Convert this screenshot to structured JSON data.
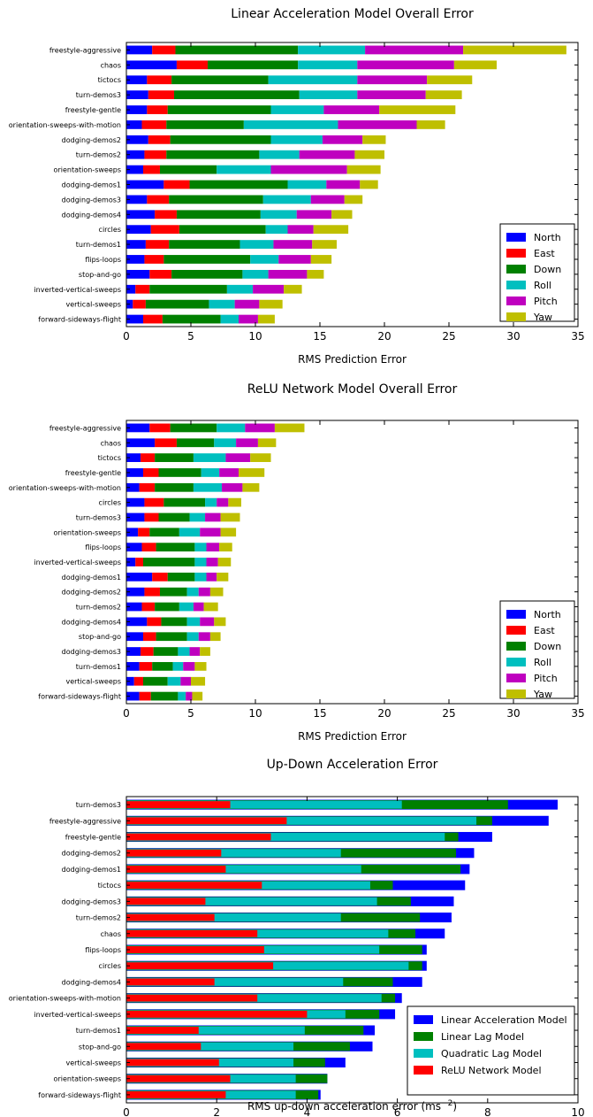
{
  "chart_data": [
    {
      "type": "bar",
      "orientation": "horizontal",
      "stacked": true,
      "title": "Linear Acceleration Model Overall Error",
      "xlabel": "RMS Prediction Error",
      "ylabel": "",
      "xlim": [
        0,
        35
      ],
      "xticks": [
        "0",
        "5",
        "10",
        "15",
        "20",
        "25",
        "30",
        "35"
      ],
      "legend_position": "lower-right",
      "categories": [
        "freestyle-aggressive",
        "chaos",
        "tictocs",
        "turn-demos3",
        "freestyle-gentle",
        "orientation-sweeps-with-motion",
        "dodging-demos2",
        "turn-demos2",
        "orientation-sweeps",
        "dodging-demos1",
        "dodging-demos3",
        "dodging-demos4",
        "circles",
        "turn-demos1",
        "flips-loops",
        "stop-and-go",
        "inverted-vertical-sweeps",
        "vertical-sweeps",
        "forward-sideways-flight"
      ],
      "series": [
        {
          "name": "North",
          "color": "#0000ff",
          "values": [
            2.0,
            3.9,
            1.6,
            1.7,
            1.6,
            1.2,
            1.7,
            1.4,
            1.3,
            2.9,
            1.6,
            2.2,
            1.9,
            1.5,
            1.4,
            1.8,
            0.7,
            0.5,
            1.3
          ]
        },
        {
          "name": "East",
          "color": "#ff0000",
          "values": [
            1.8,
            2.4,
            1.9,
            2.0,
            1.6,
            1.9,
            1.7,
            1.7,
            1.3,
            2.0,
            1.7,
            1.7,
            2.2,
            1.8,
            1.5,
            1.7,
            1.1,
            1.0,
            1.5
          ]
        },
        {
          "name": "Down",
          "color": "#008000",
          "values": [
            9.5,
            7.0,
            7.5,
            9.7,
            8.0,
            6.0,
            7.8,
            7.2,
            4.4,
            7.6,
            7.3,
            6.5,
            6.7,
            5.5,
            6.7,
            5.5,
            6.0,
            4.9,
            4.5
          ]
        },
        {
          "name": "Roll",
          "color": "#00bfbf",
          "values": [
            5.2,
            4.6,
            6.9,
            4.5,
            4.1,
            7.3,
            4.0,
            3.1,
            4.2,
            3.0,
            3.7,
            2.8,
            1.7,
            2.6,
            2.2,
            2.0,
            2.0,
            2.0,
            1.4
          ]
        },
        {
          "name": "Pitch",
          "color": "#bf00bf",
          "values": [
            7.6,
            7.5,
            5.4,
            5.3,
            4.3,
            6.1,
            3.1,
            4.3,
            5.9,
            2.6,
            2.6,
            2.7,
            2.0,
            3.0,
            2.5,
            3.0,
            2.4,
            1.9,
            1.5
          ]
        },
        {
          "name": "Yaw",
          "color": "#bfbf00",
          "values": [
            8.0,
            3.3,
            3.5,
            2.8,
            5.9,
            2.2,
            1.8,
            2.3,
            2.6,
            1.4,
            1.4,
            1.6,
            2.7,
            1.9,
            1.6,
            1.3,
            1.4,
            1.8,
            1.3
          ]
        }
      ]
    },
    {
      "type": "bar",
      "orientation": "horizontal",
      "stacked": true,
      "title": "ReLU Network Model Overall Error",
      "xlabel": "RMS Prediction Error",
      "ylabel": "",
      "xlim": [
        0,
        35
      ],
      "xticks": [
        "0",
        "5",
        "10",
        "15",
        "20",
        "25",
        "30",
        "35"
      ],
      "legend_position": "lower-right",
      "categories": [
        "freestyle-aggressive",
        "chaos",
        "tictocs",
        "freestyle-gentle",
        "orientation-sweeps-with-motion",
        "circles",
        "turn-demos3",
        "orientation-sweeps",
        "flips-loops",
        "inverted-vertical-sweeps",
        "dodging-demos1",
        "dodging-demos2",
        "turn-demos2",
        "dodging-demos4",
        "stop-and-go",
        "dodging-demos3",
        "turn-demos1",
        "vertical-sweeps",
        "forward-sideways-flight"
      ],
      "series": [
        {
          "name": "North",
          "color": "#0000ff",
          "values": [
            1.8,
            2.2,
            1.1,
            1.3,
            1.0,
            1.4,
            1.4,
            0.9,
            1.2,
            0.7,
            2.0,
            1.4,
            1.2,
            1.6,
            1.3,
            1.1,
            1.0,
            0.6,
            1.0
          ]
        },
        {
          "name": "East",
          "color": "#ff0000",
          "values": [
            1.6,
            1.7,
            1.1,
            1.2,
            1.2,
            1.5,
            1.1,
            0.9,
            1.1,
            0.6,
            1.2,
            1.2,
            1.0,
            1.1,
            1.0,
            1.0,
            1.0,
            0.7,
            0.9
          ]
        },
        {
          "name": "Down",
          "color": "#008000",
          "values": [
            3.6,
            2.9,
            3.0,
            3.3,
            3.0,
            3.2,
            2.4,
            2.3,
            3.0,
            4.0,
            2.1,
            2.1,
            1.9,
            2.0,
            2.4,
            1.9,
            1.6,
            1.9,
            2.1
          ]
        },
        {
          "name": "Roll",
          "color": "#00bfbf",
          "values": [
            2.2,
            1.7,
            2.5,
            1.4,
            2.2,
            0.9,
            1.2,
            1.6,
            0.9,
            0.9,
            0.9,
            0.9,
            1.1,
            1.0,
            0.9,
            0.9,
            0.8,
            1.0,
            0.6
          ]
        },
        {
          "name": "Pitch",
          "color": "#bf00bf",
          "values": [
            2.3,
            1.7,
            1.9,
            1.5,
            1.6,
            0.9,
            1.2,
            1.6,
            1.0,
            0.9,
            0.8,
            0.9,
            0.8,
            1.1,
            0.9,
            0.8,
            0.9,
            0.8,
            0.5
          ]
        },
        {
          "name": "Yaw",
          "color": "#bfbf00",
          "values": [
            2.3,
            1.4,
            1.6,
            2.0,
            1.3,
            1.0,
            1.5,
            1.2,
            1.0,
            1.0,
            0.9,
            1.0,
            1.1,
            0.9,
            0.8,
            0.8,
            0.9,
            1.1,
            0.8
          ]
        }
      ]
    },
    {
      "type": "bar",
      "orientation": "horizontal",
      "stacked": false,
      "overlaid": true,
      "title": "Up-Down Acceleration Error",
      "xlabel": "RMS up-down acceleration error (ms",
      "xlabel_sup": "−2",
      "xlabel_end": ")",
      "ylabel": "",
      "xlim": [
        0,
        10
      ],
      "xticks": [
        "0",
        "2",
        "4",
        "6",
        "8",
        "10"
      ],
      "legend_position": "lower-right",
      "categories": [
        "turn-demos3",
        "freestyle-aggressive",
        "freestyle-gentle",
        "dodging-demos2",
        "dodging-demos1",
        "tictocs",
        "dodging-demos3",
        "turn-demos2",
        "chaos",
        "flips-loops",
        "circles",
        "dodging-demos4",
        "orientation-sweeps-with-motion",
        "inverted-vertical-sweeps",
        "turn-demos1",
        "stop-and-go",
        "vertical-sweeps",
        "orientation-sweeps",
        "forward-sideways-flight"
      ],
      "series": [
        {
          "name": "Linear Acceleration Model",
          "color": "#0000ff",
          "values": [
            9.55,
            9.35,
            8.1,
            7.7,
            7.6,
            7.5,
            7.25,
            7.2,
            7.05,
            6.65,
            6.65,
            6.55,
            6.1,
            5.95,
            5.5,
            5.45,
            4.85,
            4.45,
            4.3
          ]
        },
        {
          "name": "Linear Lag Model",
          "color": "#008000",
          "values": [
            8.45,
            8.1,
            7.35,
            7.3,
            7.4,
            5.9,
            6.3,
            6.5,
            6.4,
            6.55,
            6.55,
            5.9,
            5.95,
            5.6,
            5.25,
            4.95,
            4.4,
            4.45,
            4.25
          ]
        },
        {
          "name": "Quadratic Lag Model",
          "color": "#00bfbf",
          "values": [
            6.1,
            7.75,
            7.05,
            4.75,
            5.2,
            5.4,
            5.55,
            4.75,
            5.8,
            5.6,
            6.25,
            4.8,
            5.65,
            4.85,
            3.95,
            3.7,
            3.7,
            3.75,
            3.75
          ]
        },
        {
          "name": "ReLU Network Model",
          "color": "#ff0000",
          "values": [
            2.3,
            3.55,
            3.2,
            2.1,
            2.2,
            3.0,
            1.75,
            1.95,
            2.9,
            3.05,
            3.25,
            1.95,
            2.9,
            4.0,
            1.6,
            1.65,
            2.05,
            2.3,
            2.2
          ]
        }
      ]
    }
  ]
}
